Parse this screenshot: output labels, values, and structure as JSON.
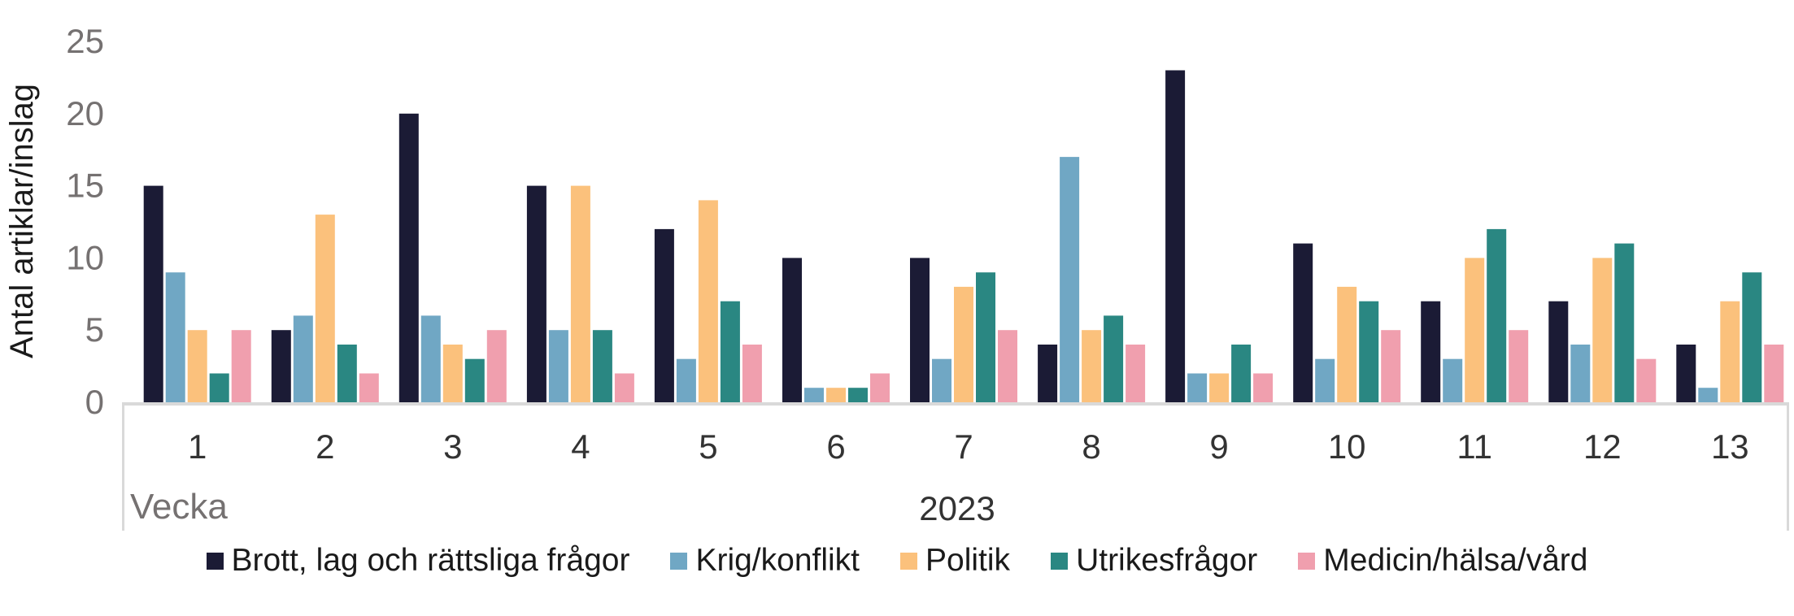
{
  "chart_data": {
    "type": "bar",
    "title": "",
    "ylabel": "Antal artiklar/inslag",
    "xlabel_row_label": "Vecka",
    "x_group_label": "2023",
    "categories": [
      "1",
      "2",
      "3",
      "4",
      "5",
      "6",
      "7",
      "8",
      "9",
      "10",
      "11",
      "12",
      "13"
    ],
    "yticks": [
      0,
      5,
      10,
      15,
      20,
      25
    ],
    "ylim": [
      0,
      25
    ],
    "grid": "off",
    "legend_position": "bottom",
    "axis_line_color": "#D9D9D9",
    "series": [
      {
        "name": "Brott, lag och rättsliga frågor",
        "color": "#1B1B35",
        "values": [
          15,
          5,
          20,
          15,
          12,
          10,
          10,
          4,
          23,
          11,
          7,
          7,
          4
        ]
      },
      {
        "name": "Krig/konflikt",
        "color": "#70A7C4",
        "values": [
          9,
          6,
          6,
          5,
          3,
          1,
          3,
          17,
          2,
          3,
          3,
          4,
          1
        ]
      },
      {
        "name": "Politik",
        "color": "#FBC17C",
        "values": [
          5,
          13,
          4,
          15,
          14,
          1,
          8,
          5,
          2,
          8,
          10,
          10,
          7
        ]
      },
      {
        "name": "Utrikesfrågor",
        "color": "#2A8782",
        "values": [
          2,
          4,
          3,
          5,
          7,
          1,
          9,
          6,
          4,
          7,
          12,
          11,
          9
        ]
      },
      {
        "name": "Medicin/hälsa/vård",
        "color": "#F09FAE",
        "values": [
          5,
          2,
          5,
          2,
          4,
          2,
          5,
          4,
          2,
          5,
          5,
          3,
          4
        ]
      }
    ]
  }
}
